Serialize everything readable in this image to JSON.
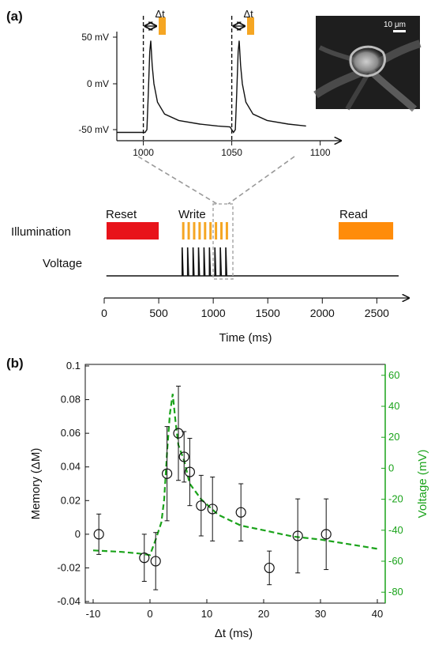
{
  "panel_a": {
    "label": "(a)",
    "inset": {
      "dt_label": "Δt",
      "y_ticks": [
        "50 mV",
        "0 mV",
        "-50 mV"
      ],
      "x_ticks": [
        1000,
        1050,
        1100
      ],
      "xlim": [
        985,
        1110
      ],
      "spikes": [
        1002,
        1052
      ],
      "colors": {
        "trace": "#111111",
        "pulse": "#f5a623"
      }
    },
    "image": {
      "scale_label": "10 μm"
    },
    "protocol": {
      "labels": {
        "reset": "Reset",
        "write": "Write",
        "read": "Read",
        "illumination": "Illumination",
        "voltage": "Voltage"
      },
      "colors": {
        "reset": "#e8131a",
        "write": "#f5a623",
        "read": "#ff8c0a"
      },
      "reset_ms": [
        0,
        500
      ],
      "read_ms": [
        2150,
        2650
      ],
      "write_pulses_ms": [
        725,
        775,
        825,
        875,
        925,
        975,
        1025,
        1075,
        1125
      ],
      "spikes_ms": [
        715,
        765,
        815,
        865,
        915,
        965,
        1015,
        1065,
        1115
      ],
      "x_ticks": [
        0,
        500,
        1000,
        1500,
        2000,
        2500
      ],
      "xlabel": "Time (ms)"
    }
  },
  "panel_b": {
    "label": "(b)",
    "chart_data": {
      "type": "scatter",
      "xlabel": "Δt (ms)",
      "ylabel": "Memory (ΔM)",
      "y2label": "Voltage (mV)",
      "xlim": [
        -10,
        40
      ],
      "ylim": [
        -0.04,
        0.1
      ],
      "y2lim": [
        -85,
        65
      ],
      "x_ticks": [
        "-10",
        "0",
        "10",
        "20",
        "30",
        "40"
      ],
      "y_ticks": [
        "-0.04",
        "-0.02",
        "0",
        "0.02",
        "0.04",
        "0.06",
        "0.08",
        "0.1"
      ],
      "y2_ticks": [
        "-80",
        "-60",
        "-40",
        "-20",
        "0",
        "20",
        "40",
        "60"
      ],
      "series": [
        {
          "kind": "points",
          "x": [
            -9,
            -1,
            1,
            3,
            5,
            6,
            7,
            9,
            11,
            16,
            21,
            26,
            31
          ],
          "y": [
            0.0,
            -0.014,
            -0.016,
            0.036,
            0.06,
            0.046,
            0.037,
            0.017,
            0.015,
            0.013,
            -0.02,
            -0.001,
            0.0
          ],
          "err": [
            0.012,
            0.014,
            0.017,
            0.028,
            0.028,
            0.015,
            0.02,
            0.018,
            0.019,
            0.017,
            0.01,
            0.022,
            0.021
          ]
        },
        {
          "kind": "line",
          "x": [
            -10,
            -5,
            -2,
            0,
            1,
            2,
            2.5,
            3,
            3.5,
            4,
            4.5,
            5,
            6,
            7,
            9,
            12,
            16,
            20,
            25,
            30,
            35,
            40
          ],
          "y": [
            -53,
            -54,
            -55,
            -56,
            -46,
            -35,
            -20,
            10,
            35,
            48,
            30,
            15,
            5,
            -10,
            -20,
            -30,
            -37,
            -40,
            -44,
            -46,
            -49,
            -52
          ],
          "color": "#1aa31a"
        }
      ]
    }
  }
}
